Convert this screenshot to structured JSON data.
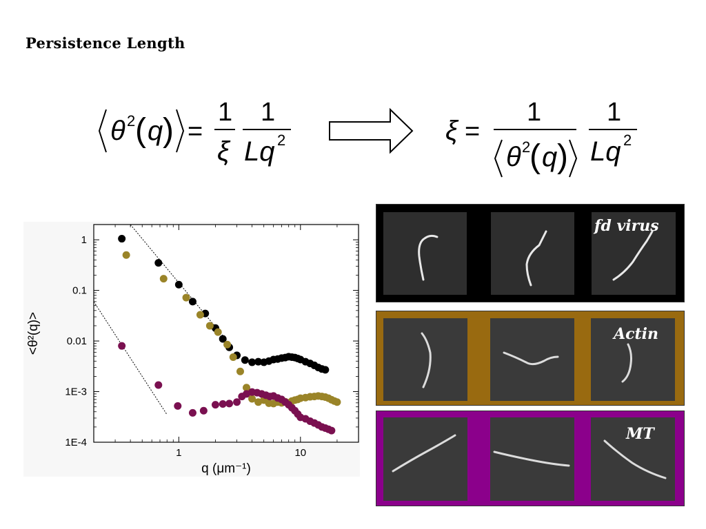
{
  "slide": {
    "title": "Persistence Length"
  },
  "equations": {
    "left": {
      "lhs": "⟨θ²(q)⟩ =",
      "one_a": "1",
      "xi": "ξ",
      "one_b": "1",
      "lq2": "Lq²"
    },
    "right": {
      "lhs": "ξ =",
      "one_a": "1",
      "denom": "⟨θ²(q)⟩",
      "one_b": "1",
      "lq2": "Lq²"
    }
  },
  "panels": [
    {
      "label": "fd virus",
      "bg": "#000000"
    },
    {
      "label": "Actin",
      "bg": "#996a10"
    },
    {
      "label": "MT",
      "bg": "#8b008b"
    }
  ],
  "chart_data": {
    "type": "scatter",
    "xlabel": "q (μm⁻¹)",
    "ylabel": "<θ²(q)>",
    "xscale": "log",
    "yscale": "log",
    "xlim": [
      0.2,
      30
    ],
    "ylim": [
      0.0001,
      2
    ],
    "xticks": [
      "1",
      "10"
    ],
    "yticks": [
      "1",
      "0.1",
      "0.01",
      "1E-3",
      "1E-4"
    ],
    "colors": {
      "fd": "#000000",
      "actin": "#9a8428",
      "mt": "#7a1050"
    },
    "series": [
      {
        "key": "fd",
        "x": [
          0.34,
          0.68,
          1.0,
          1.3,
          1.65,
          2.0,
          2.3,
          2.6,
          3.0,
          3.5,
          4.0,
          4.5,
          5.0,
          5.5,
          6.0,
          6.5,
          7.0,
          7.5,
          8.0,
          8.5,
          9.0,
          9.5,
          10.0,
          11.0,
          12.0,
          13.0,
          14.0,
          15.0,
          16.0
        ],
        "y": [
          1.05,
          0.35,
          0.13,
          0.06,
          0.035,
          0.018,
          0.011,
          0.0075,
          0.0052,
          0.0042,
          0.0038,
          0.0039,
          0.0038,
          0.004,
          0.0043,
          0.0044,
          0.0046,
          0.0047,
          0.0049,
          0.0048,
          0.0047,
          0.0045,
          0.0043,
          0.0039,
          0.0036,
          0.0033,
          0.003,
          0.0028,
          0.0027
        ]
      },
      {
        "key": "actin",
        "x": [
          0.37,
          0.75,
          1.15,
          1.5,
          1.8,
          2.1,
          2.5,
          2.8,
          3.2,
          3.6,
          4.0,
          4.5,
          5.0,
          5.5,
          6.0,
          6.5,
          7.0,
          7.5,
          8.0,
          8.5,
          9.0,
          9.5,
          10.0,
          11.0,
          12.0,
          13.0,
          14.0,
          15.0,
          16.0,
          17.0,
          18.0,
          19.0,
          20.0
        ],
        "y": [
          0.5,
          0.17,
          0.072,
          0.033,
          0.02,
          0.015,
          0.0085,
          0.0048,
          0.0025,
          0.0012,
          0.00072,
          0.00062,
          0.00068,
          0.00059,
          0.00058,
          0.00062,
          0.0006,
          0.00063,
          0.0006,
          0.00065,
          0.00068,
          0.0007,
          0.00074,
          0.00076,
          0.00079,
          0.0008,
          0.00082,
          0.0008,
          0.00078,
          0.00074,
          0.00069,
          0.00065,
          0.00062
        ]
      },
      {
        "key": "mt",
        "x": [
          0.34,
          0.68,
          0.98,
          1.3,
          1.6,
          2.0,
          2.3,
          2.6,
          3.0,
          3.3,
          3.6,
          4.0,
          4.4,
          4.8,
          5.2,
          5.6,
          6.0,
          6.5,
          7.0,
          7.5,
          8.0,
          8.5,
          9.0,
          9.5,
          10.0,
          11.0,
          12.0,
          13.0,
          14.0,
          15.0,
          16.0,
          17.0,
          18.0
        ],
        "y": [
          0.008,
          0.00135,
          0.00052,
          0.00038,
          0.00042,
          0.00055,
          0.00057,
          0.00058,
          0.00062,
          0.0008,
          0.0009,
          0.00098,
          0.00095,
          0.0009,
          0.00085,
          0.0008,
          0.00082,
          0.00075,
          0.0007,
          0.00062,
          0.00055,
          0.00048,
          0.00042,
          0.00036,
          0.00031,
          0.00029,
          0.00026,
          0.00024,
          0.00022,
          0.0002,
          0.00019,
          0.00018,
          0.00017
        ]
      }
    ],
    "guides": [
      {
        "points": [
          [
            0.4,
            2.0
          ],
          [
            2.5,
            0.01
          ]
        ]
      },
      {
        "points": [
          [
            0.2,
            0.06
          ],
          [
            0.8,
            0.00035
          ]
        ]
      }
    ]
  }
}
